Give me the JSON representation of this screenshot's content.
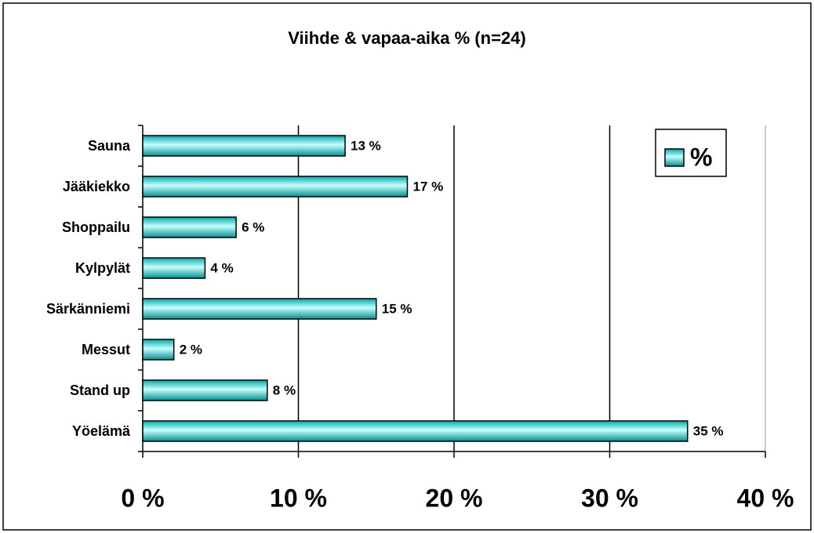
{
  "chart_data": {
    "type": "bar",
    "orientation": "horizontal",
    "title": "Viihde & vapaa-aika % (n=24)",
    "categories": [
      "Sauna",
      "Jääkiekko",
      "Shoppailu",
      "Kylpylät",
      "Särkänniemi",
      "Messut",
      "Stand up",
      "Yöelämä"
    ],
    "series": [
      {
        "name": "%",
        "color": "#00ffff",
        "values": [
          13,
          17,
          6,
          4,
          15,
          2,
          8,
          35
        ],
        "value_labels": [
          "13 %",
          "17 %",
          "6 %",
          "4 %",
          "15 %",
          "2 %",
          "8 %",
          "35 %"
        ]
      }
    ],
    "xlim": [
      0,
      40
    ],
    "xticks": [
      {
        "value": 0,
        "label": "0 %"
      },
      {
        "value": 10,
        "label": "10 %"
      },
      {
        "value": 20,
        "label": "20 %"
      },
      {
        "value": 30,
        "label": "30 %"
      },
      {
        "value": 40,
        "label": "40 %"
      }
    ],
    "grid": true,
    "legend": "upper right"
  }
}
